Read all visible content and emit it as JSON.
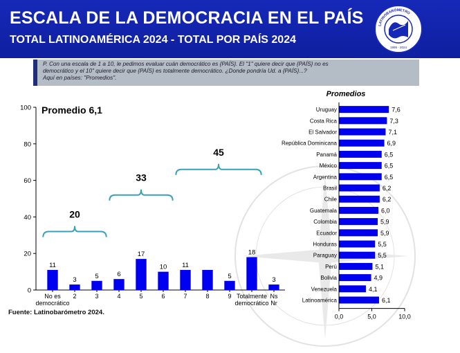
{
  "header": {
    "title": "ESCALA DE LA DEMOCRACIA EN EL PAÍS",
    "subtitle": "TOTAL LATINOAMÉRICA 2024 - TOTAL POR PAÍS 2024",
    "logo_text": "LATINOBARÓMETRO",
    "logo_years": "1995 - 2024"
  },
  "question": {
    "line1": "P. Con una escala de 1 a 10, le pedimos evaluar cuán democrático es {PAÍS}. El \"1\" quiere decir que {PAÍS} no es",
    "line2": "democrático y el 10\" quiere decir que {PAÍS} es totalmente democrático. ¿Donde pondría Ud. a {PAÍS}...?",
    "line3": "Aquí en países: \"Promedios\"."
  },
  "source": "Fuente: Latinobarómetro 2024.",
  "colors": {
    "bar": "#0000ee",
    "bracket": "#3aa0b8",
    "header": "#1628b8"
  },
  "chart_data": [
    {
      "type": "bar",
      "title": "Promedio 6,1",
      "categories": [
        "No es democrático",
        "2",
        "3",
        "4",
        "5",
        "6",
        "7",
        "8",
        "9",
        "Totalmente democrático",
        "Ns Nr"
      ],
      "category_lines": [
        [
          "No es",
          "democrático"
        ],
        [
          "2"
        ],
        [
          "3"
        ],
        [
          "4"
        ],
        [
          "5"
        ],
        [
          "6"
        ],
        [
          "7"
        ],
        [
          "8"
        ],
        [
          "9"
        ],
        [
          "Totalmente",
          "democrático"
        ],
        [
          "Ns",
          "Nr"
        ]
      ],
      "values": [
        11,
        3,
        5,
        6,
        17,
        10,
        11,
        11,
        5,
        18,
        3
      ],
      "value_labels": [
        "11",
        "3",
        "5",
        "6",
        "17",
        "10",
        "11",
        "",
        "5",
        "18",
        "3"
      ],
      "ylim": [
        0,
        100
      ],
      "yticks": [
        0,
        20,
        40,
        60,
        80,
        100
      ],
      "groups": [
        {
          "from": 0,
          "to": 2,
          "total": "20"
        },
        {
          "from": 3,
          "to": 5,
          "total": "33"
        },
        {
          "from": 6,
          "to": 9,
          "total": "45"
        }
      ],
      "grid": false,
      "color": "#0000ee"
    },
    {
      "type": "bar",
      "orientation": "horizontal",
      "title": "Promedios",
      "categories": [
        "Uruguay",
        "Costa Rica",
        "El Salvador",
        "República Dominicana",
        "Panamá",
        "México",
        "Argentina",
        "Brasil",
        "Chile",
        "Guatemala",
        "Colombia",
        "Ecuador",
        "Honduras",
        "Paraguay",
        "Perú",
        "Bolivia",
        "Venezuela",
        "Latinoamérica"
      ],
      "values": [
        7.6,
        7.3,
        7.1,
        6.9,
        6.5,
        6.5,
        6.5,
        6.2,
        6.2,
        6.0,
        5.9,
        5.9,
        5.5,
        5.5,
        5.1,
        4.9,
        4.1,
        6.1
      ],
      "value_labels": [
        "7,6",
        "7,3",
        "7,1",
        "6,9",
        "6,5",
        "6,5",
        "6,5",
        "6,2",
        "6,2",
        "6,0",
        "5,9",
        "5,9",
        "5,5",
        "5,5",
        "5,1",
        "4,9",
        "4,1",
        "6,1"
      ],
      "xlim": [
        0,
        10
      ],
      "xticks": [
        "0,0",
        "5,0",
        "10,0"
      ],
      "grid": false,
      "color": "#0000ee"
    }
  ]
}
